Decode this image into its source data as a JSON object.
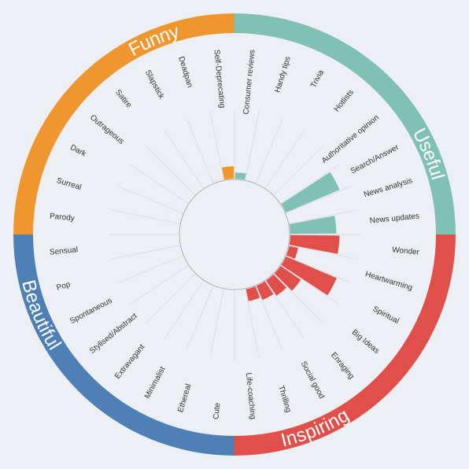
{
  "chart_data": {
    "type": "bar",
    "layout": "radial",
    "categories": [
      "Consumer reviews",
      "Handy tips",
      "Trivia",
      "Hotlists",
      "Authoritative opinion",
      "Search/Answer",
      "News analysis",
      "News updates",
      "Wonder",
      "Heartwarming",
      "Spiritual",
      "Big Ideas",
      "Enraging",
      "Social good",
      "Thrilling",
      "Life-coaching",
      "Cute",
      "Ethereal",
      "Minimalist",
      "Extravagant",
      "Stylised/Abstract",
      "Spontaneous",
      "Pop",
      "Sensual",
      "Parody",
      "Surreal",
      "Dark",
      "Outrageous",
      "Satire",
      "Slapstick",
      "Deadpan",
      "Self-Deprecating"
    ],
    "values": [
      0.1,
      0,
      0,
      0,
      0,
      0.95,
      0,
      0.75,
      0.8,
      0.15,
      0.9,
      0.4,
      0.3,
      0.25,
      0.2,
      0,
      0,
      0,
      0,
      0,
      0,
      0,
      0,
      0,
      0,
      0,
      0,
      0,
      0,
      0,
      0,
      0.2
    ],
    "groups": [
      {
        "name": "Useful",
        "color": "#80c0b5"
      },
      {
        "name": "Inspiring",
        "color": "#e04f4a"
      },
      {
        "name": "Beautiful",
        "color": "#4e80b5"
      },
      {
        "name": "Funny",
        "color": "#f0962e"
      }
    ],
    "ylim": [
      0,
      1
    ]
  }
}
